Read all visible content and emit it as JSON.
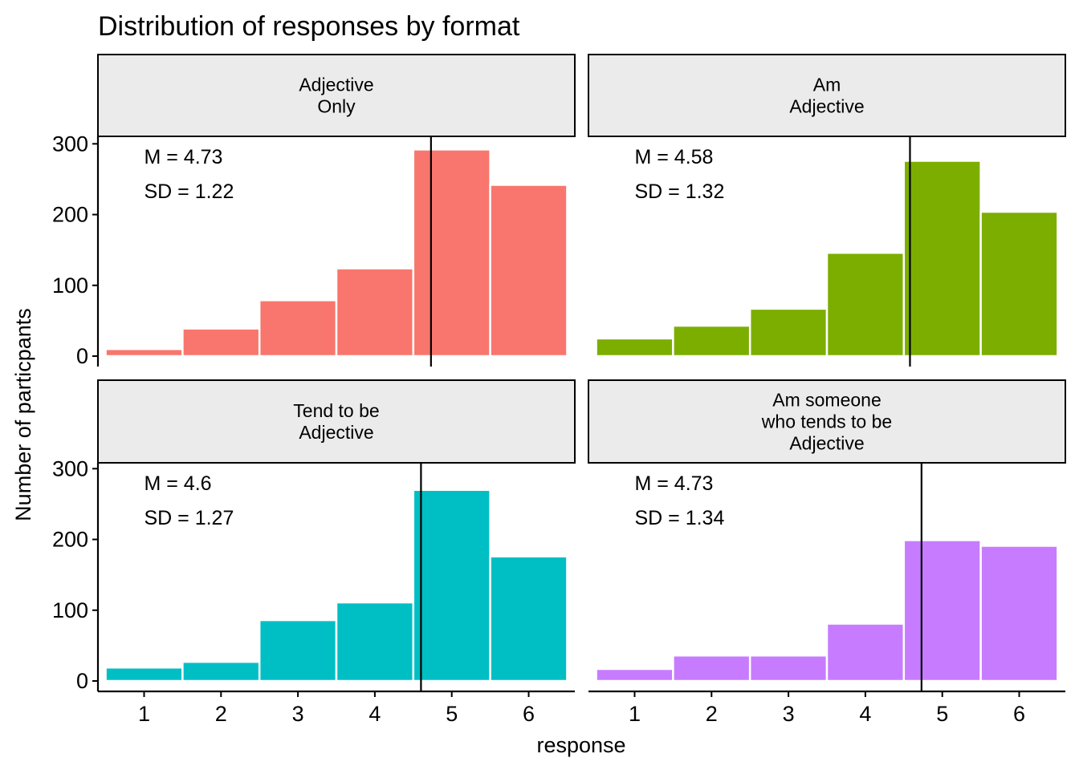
{
  "chart_data": {
    "type": "bar",
    "title": "Distribution of responses by format",
    "xlabel": "response",
    "ylabel": "Number of particpants",
    "x_ticks": [
      "1",
      "2",
      "3",
      "4",
      "5",
      "6"
    ],
    "y_ticks": [
      "0",
      "100",
      "200",
      "300"
    ],
    "ylim": [
      0,
      310
    ],
    "xlim": [
      0.4,
      6.6
    ],
    "grid": false,
    "legend": "none",
    "panels": [
      {
        "label_lines": [
          "Adjective",
          "Only"
        ],
        "color": "#F8766D",
        "categories": [
          1,
          2,
          3,
          4,
          5,
          6
        ],
        "values": [
          10,
          39,
          79,
          124,
          292,
          242
        ],
        "mean": 4.73,
        "mean_text": "M = 4.73",
        "sd_text": "SD = 1.22"
      },
      {
        "label_lines": [
          "Am",
          "Adjective"
        ],
        "color": "#7CAE00",
        "categories": [
          1,
          2,
          3,
          4,
          5,
          6
        ],
        "values": [
          25,
          43,
          67,
          146,
          276,
          204
        ],
        "mean": 4.58,
        "mean_text": "M = 4.58",
        "sd_text": "SD = 1.32"
      },
      {
        "label_lines": [
          "Tend to be",
          "Adjective"
        ],
        "color": "#00BFC4",
        "categories": [
          1,
          2,
          3,
          4,
          5,
          6
        ],
        "values": [
          19,
          27,
          86,
          111,
          270,
          176
        ],
        "mean": 4.6,
        "mean_text": "M = 4.6",
        "sd_text": "SD = 1.27"
      },
      {
        "label_lines": [
          "Am someone",
          "who tends to be",
          "Adjective"
        ],
        "color": "#C77CFF",
        "categories": [
          1,
          2,
          3,
          4,
          5,
          6
        ],
        "values": [
          17,
          36,
          36,
          81,
          199,
          191
        ],
        "mean": 4.73,
        "mean_text": "M = 4.73",
        "sd_text": "SD = 1.34"
      }
    ]
  }
}
